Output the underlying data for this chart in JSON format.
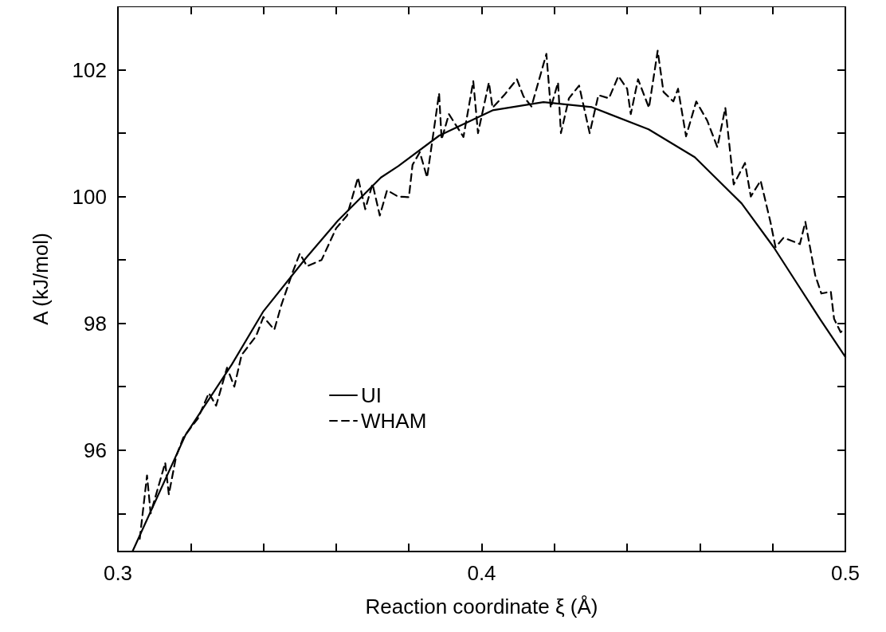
{
  "chart_data": {
    "type": "line",
    "xlabel": "Reaction coordinate ξ (Å)",
    "ylabel": "A (kJ/mol)",
    "xlim": [
      0.3,
      0.5
    ],
    "ylim": [
      94.4,
      103
    ],
    "xticks": [
      0.3,
      {
        "value": 0.32,
        "label": null
      },
      {
        "value": 0.34,
        "label": null
      },
      {
        "value": 0.36,
        "label": null
      },
      {
        "value": 0.38,
        "label": null
      },
      0.4,
      {
        "value": 0.42,
        "label": null
      },
      {
        "value": 0.44,
        "label": null
      },
      {
        "value": 0.46,
        "label": null
      },
      {
        "value": 0.48,
        "label": null
      },
      0.5
    ],
    "yticks": [
      {
        "value": 95,
        "label": null
      },
      96,
      {
        "value": 97,
        "label": null
      },
      98,
      {
        "value": 99,
        "label": null
      },
      100,
      {
        "value": 101,
        "label": null
      },
      102
    ],
    "grid": false,
    "legend": "bottom left",
    "marker": "none",
    "series": [
      {
        "name": "UI",
        "color": "#000000",
        "line_style": "solid",
        "x": [
          0.304,
          0.3186,
          0.3313,
          0.34,
          0.3517,
          0.3605,
          0.3723,
          0.3771,
          0.3883,
          0.403,
          0.417,
          0.4303,
          0.4459,
          0.4586,
          0.4715,
          0.4803,
          0.493,
          0.5
        ],
        "values": [
          94.4,
          96.24,
          97.35,
          98.19,
          99.03,
          99.62,
          100.3,
          100.48,
          100.96,
          101.36,
          101.49,
          101.41,
          101.06,
          100.62,
          99.89,
          99.2,
          98.07,
          97.47
        ]
      },
      {
        "name": "WHAM",
        "color": "#000000",
        "line_style": "dashed",
        "x": [
          0.306,
          0.308,
          0.309,
          0.311,
          0.313,
          0.314,
          0.316,
          0.318,
          0.322,
          0.325,
          0.327,
          0.33,
          0.332,
          0.334,
          0.338,
          0.34,
          0.343,
          0.345,
          0.348,
          0.35,
          0.352,
          0.356,
          0.36,
          0.363,
          0.366,
          0.368,
          0.37,
          0.372,
          0.374,
          0.377,
          0.38,
          0.381,
          0.383,
          0.385,
          0.3883,
          0.389,
          0.391,
          0.395,
          0.3977,
          0.399,
          0.402,
          0.403,
          0.4062,
          0.4097,
          0.4115,
          0.4137,
          0.4178,
          0.419,
          0.421,
          0.4218,
          0.424,
          0.4268,
          0.4297,
          0.4321,
          0.435,
          0.4376,
          0.44,
          0.441,
          0.443,
          0.446,
          0.4484,
          0.45,
          0.4527,
          0.454,
          0.4562,
          0.459,
          0.462,
          0.4648,
          0.467,
          0.4693,
          0.4724,
          0.474,
          0.4767,
          0.4794,
          0.4808,
          0.483,
          0.4875,
          0.489,
          0.4917,
          0.4934,
          0.496,
          0.4969,
          0.4987,
          0.4995
        ],
        "values": [
          94.6,
          95.6,
          95.0,
          95.4,
          95.8,
          95.3,
          95.9,
          96.2,
          96.5,
          96.9,
          96.7,
          97.3,
          97.0,
          97.5,
          97.8,
          98.1,
          97.9,
          98.3,
          98.8,
          99.1,
          98.9,
          99.0,
          99.5,
          99.7,
          100.3,
          99.8,
          100.2,
          99.7,
          100.1,
          100.0,
          99.99,
          100.5,
          100.7,
          100.3,
          101.63,
          100.9,
          101.3,
          100.94,
          101.82,
          101.0,
          101.8,
          101.4,
          101.6,
          101.85,
          101.58,
          101.42,
          102.25,
          101.4,
          101.8,
          101.0,
          101.55,
          101.75,
          101.0,
          101.6,
          101.55,
          101.9,
          101.7,
          101.3,
          101.85,
          101.4,
          102.3,
          101.65,
          101.5,
          101.7,
          100.95,
          101.5,
          101.2,
          100.78,
          101.4,
          100.19,
          100.53,
          100.0,
          100.25,
          99.6,
          99.2,
          99.35,
          99.25,
          99.6,
          98.76,
          98.47,
          98.5,
          98.07,
          97.86,
          97.9
        ]
      }
    ]
  }
}
